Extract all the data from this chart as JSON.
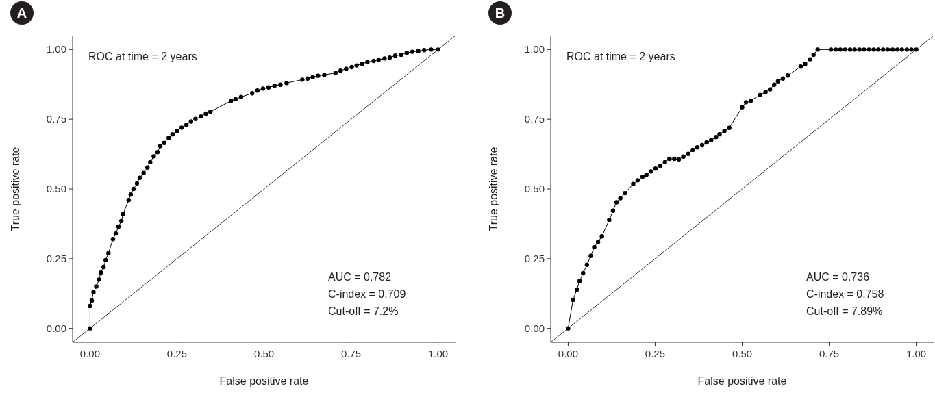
{
  "chart_data": [
    {
      "type": "line",
      "xlabel": "False positive rate",
      "ylabel": "True positive rate",
      "xlim": [
        -0.05,
        1.05
      ],
      "ylim": [
        -0.05,
        1.05
      ],
      "xticks": [
        {
          "value": 0,
          "label": "0.00"
        },
        {
          "value": 0.25,
          "label": "0.25"
        },
        {
          "value": 0.5,
          "label": "0.50"
        },
        {
          "value": 0.75,
          "label": "0.75"
        },
        {
          "value": 1,
          "label": "1.00"
        }
      ],
      "yticks": [
        {
          "value": 0,
          "label": "0.00"
        },
        {
          "value": 0.25,
          "label": "0.25"
        },
        {
          "value": 0.5,
          "label": "0.50"
        },
        {
          "value": 0.75,
          "label": "0.75"
        },
        {
          "value": 1,
          "label": "1.00"
        }
      ],
      "grid": false,
      "marker": "circle",
      "line_style": "solid",
      "annotations": [
        "A",
        "ROC at time = 2 years",
        "AUC = 0.782",
        "C-index = 0.709",
        "Cut-off = 7.2%"
      ],
      "series": [
        {
          "color": "#000000",
          "marker": "none",
          "x": [
            -0.05,
            1.05
          ],
          "values": [
            -0.05,
            1.05
          ]
        },
        {
          "color": "#000000",
          "x": [
            0,
            0,
            0.005,
            0.01,
            0.018,
            0.026,
            0.031,
            0.039,
            0.045,
            0.053,
            0.066,
            0.074,
            0.082,
            0.09,
            0.095,
            0.111,
            0.117,
            0.125,
            0.135,
            0.143,
            0.154,
            0.165,
            0.173,
            0.183,
            0.194,
            0.202,
            0.213,
            0.226,
            0.237,
            0.25,
            0.263,
            0.277,
            0.29,
            0.303,
            0.319,
            0.333,
            0.346,
            0.405,
            0.418,
            0.434,
            0.466,
            0.481,
            0.497,
            0.513,
            0.53,
            0.547,
            0.565,
            0.61,
            0.625,
            0.64,
            0.655,
            0.673,
            0.705,
            0.72,
            0.736,
            0.752,
            0.766,
            0.782,
            0.797,
            0.815,
            0.829,
            0.846,
            0.861,
            0.877,
            0.894,
            0.91,
            0.926,
            0.943,
            0.96,
            0.98,
            1
          ],
          "values": [
            0,
            0.08,
            0.1,
            0.13,
            0.15,
            0.175,
            0.2,
            0.22,
            0.245,
            0.27,
            0.32,
            0.34,
            0.365,
            0.385,
            0.41,
            0.46,
            0.48,
            0.5,
            0.52,
            0.54,
            0.557,
            0.577,
            0.596,
            0.617,
            0.632,
            0.654,
            0.665,
            0.683,
            0.696,
            0.708,
            0.72,
            0.73,
            0.742,
            0.751,
            0.76,
            0.77,
            0.777,
            0.816,
            0.822,
            0.83,
            0.843,
            0.853,
            0.86,
            0.864,
            0.87,
            0.874,
            0.88,
            0.892,
            0.896,
            0.901,
            0.906,
            0.909,
            0.916,
            0.924,
            0.931,
            0.937,
            0.943,
            0.949,
            0.955,
            0.959,
            0.963,
            0.968,
            0.971,
            0.978,
            0.981,
            0.988,
            0.992,
            0.994,
            0.998,
            1,
            1
          ]
        }
      ]
    },
    {
      "type": "line",
      "xlabel": "False positive rate",
      "ylabel": "True positive rate",
      "xlim": [
        -0.05,
        1.05
      ],
      "ylim": [
        -0.05,
        1.05
      ],
      "xticks": [
        {
          "value": 0,
          "label": "0.00"
        },
        {
          "value": 0.25,
          "label": "0.25"
        },
        {
          "value": 0.5,
          "label": "0.50"
        },
        {
          "value": 0.75,
          "label": "0.75"
        },
        {
          "value": 1,
          "label": "1.00"
        }
      ],
      "yticks": [
        {
          "value": 0,
          "label": "0.00"
        },
        {
          "value": 0.25,
          "label": "0.25"
        },
        {
          "value": 0.5,
          "label": "0.50"
        },
        {
          "value": 0.75,
          "label": "0.75"
        },
        {
          "value": 1,
          "label": "1.00"
        }
      ],
      "grid": false,
      "marker": "circle",
      "line_style": "solid",
      "annotations": [
        "B",
        "ROC at time = 2 years",
        "AUC = 0.736",
        "C-index = 0.758",
        "Cut-off = 7.89%"
      ],
      "series": [
        {
          "color": "#000000",
          "marker": "none",
          "x": [
            -0.05,
            1.05
          ],
          "values": [
            -0.05,
            1.05
          ]
        },
        {
          "color": "#000000",
          "x": [
            0,
            0.014,
            0.025,
            0.033,
            0.043,
            0.054,
            0.065,
            0.075,
            0.086,
            0.097,
            0.118,
            0.129,
            0.139,
            0.15,
            0.163,
            0.187,
            0.2,
            0.214,
            0.225,
            0.238,
            0.251,
            0.265,
            0.278,
            0.291,
            0.305,
            0.318,
            0.331,
            0.345,
            0.358,
            0.371,
            0.385,
            0.398,
            0.411,
            0.425,
            0.435,
            0.449,
            0.463,
            0.5,
            0.511,
            0.525,
            0.552,
            0.567,
            0.58,
            0.592,
            0.603,
            0.617,
            0.631,
            0.668,
            0.681,
            0.695,
            0.705,
            0.717,
            0.755,
            0.769,
            0.782,
            0.796,
            0.81,
            0.823,
            0.837,
            0.85,
            0.864,
            0.878,
            0.891,
            0.905,
            0.918,
            0.932,
            0.946,
            0.959,
            0.973,
            0.986,
            1
          ],
          "values": [
            0,
            0.102,
            0.139,
            0.17,
            0.198,
            0.228,
            0.26,
            0.291,
            0.31,
            0.33,
            0.389,
            0.422,
            0.452,
            0.467,
            0.485,
            0.518,
            0.531,
            0.544,
            0.551,
            0.563,
            0.573,
            0.583,
            0.596,
            0.608,
            0.608,
            0.606,
            0.616,
            0.626,
            0.64,
            0.649,
            0.657,
            0.667,
            0.675,
            0.686,
            0.696,
            0.708,
            0.719,
            0.793,
            0.811,
            0.817,
            0.837,
            0.847,
            0.857,
            0.874,
            0.886,
            0.896,
            0.907,
            0.939,
            0.948,
            0.965,
            0.981,
            1,
            1,
            1,
            1,
            1,
            1,
            1,
            1,
            1,
            1,
            1,
            1,
            1,
            1,
            1,
            1,
            1,
            1,
            1,
            1
          ]
        }
      ]
    }
  ]
}
